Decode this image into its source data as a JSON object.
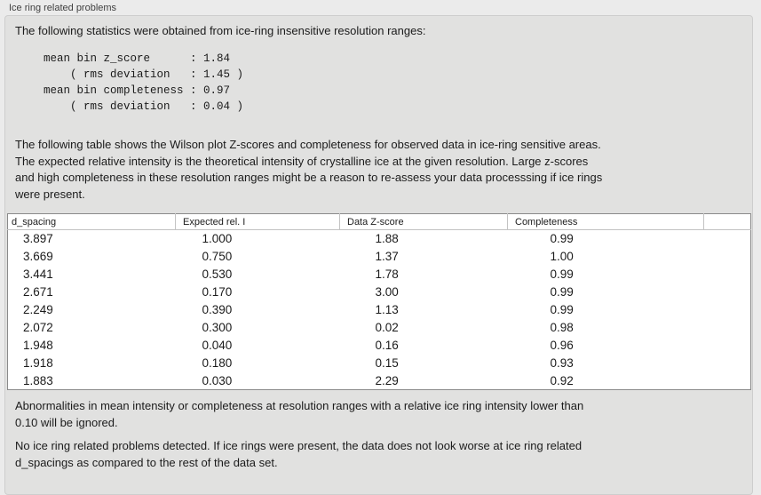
{
  "panel": {
    "title": "Ice ring related problems"
  },
  "intro": {
    "text": "The following statistics were obtained from ice-ring insensitive resolution ranges:",
    "stats_block": [
      "mean bin z_score      : 1.84",
      "    ( rms deviation   : 1.45 )",
      "mean bin completeness : 0.97",
      "    ( rms deviation   : 0.04 )"
    ]
  },
  "description": {
    "lines": [
      "The following table shows the Wilson plot Z-scores and completeness for observed data in ice-ring sensitive areas.",
      "The expected relative intensity is the theoretical intensity of crystalline ice at the given resolution. Large z-scores",
      "and high completeness in these resolution ranges might be a reason to re-assess your data processsing if ice rings",
      "were present."
    ]
  },
  "table": {
    "columns": [
      "d_spacing",
      "Expected rel. I",
      "Data Z-score",
      "Completeness"
    ],
    "rows": [
      [
        "3.897",
        "1.000",
        "1.88",
        "0.99"
      ],
      [
        "3.669",
        "0.750",
        "1.37",
        "1.00"
      ],
      [
        "3.441",
        "0.530",
        "1.78",
        "0.99"
      ],
      [
        "2.671",
        "0.170",
        "3.00",
        "0.99"
      ],
      [
        "2.249",
        "0.390",
        "1.13",
        "0.99"
      ],
      [
        "2.072",
        "0.300",
        "0.02",
        "0.98"
      ],
      [
        "1.948",
        "0.040",
        "0.16",
        "0.96"
      ],
      [
        "1.918",
        "0.180",
        "0.15",
        "0.93"
      ],
      [
        "1.883",
        "0.030",
        "2.29",
        "0.92"
      ]
    ]
  },
  "notes": {
    "ignore_note_lines": [
      "Abnormalities in mean intensity or completeness at resolution ranges with a relative ice ring intensity lower than",
      "0.10 will be ignored."
    ],
    "conclusion_lines": [
      "No ice ring related problems detected. If ice rings were present, the data does not look worse at ice ring related",
      "d_spacings as compared to the rest of the data set."
    ]
  },
  "colors": {
    "window_bg": "#ebebeb",
    "box_bg": "#e1e1e0",
    "box_border": "#cdcdcd",
    "table_bg": "#ffffff",
    "table_border": "#8a8a8a",
    "header_sep": "#c3c3c3",
    "text": "#1b1b1b",
    "label_text": "#404040"
  }
}
